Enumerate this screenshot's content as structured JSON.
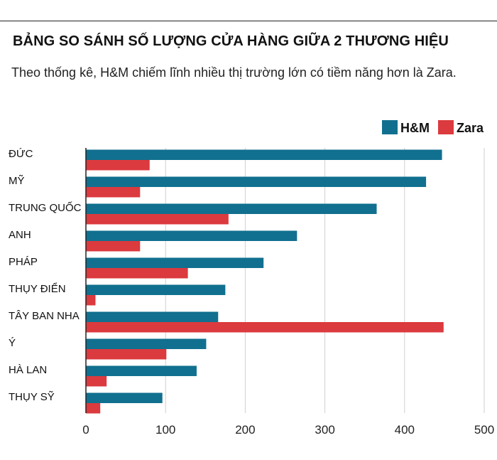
{
  "header": {
    "title": "BẢNG SO SÁNH SỐ LƯỢNG CỬA HÀNG GIỮA 2 THƯƠNG HIỆU",
    "subtitle": "Theo thống kê, H&M chiếm lĩnh nhiều thị trường lớn có tiềm năng hơn là Zara."
  },
  "chart_data": {
    "type": "bar",
    "orientation": "horizontal",
    "title": "BẢNG SO SÁNH SỐ LƯỢNG CỬA HÀNG GIỮA 2 THƯƠNG HIỆU",
    "xlabel": "",
    "ylabel": "",
    "categories": [
      "ĐỨC",
      "MỸ",
      "TRUNG QUỐC",
      "ANH",
      "PHÁP",
      "THỤY ĐIỂN",
      "TÂY BAN NHA",
      "Ý",
      "HÀ LAN",
      "THỤY SỸ"
    ],
    "series": [
      {
        "name": "H&M",
        "color": "#11708f",
        "values": [
          447,
          427,
          365,
          265,
          223,
          175,
          166,
          151,
          139,
          96
        ]
      },
      {
        "name": "Zara",
        "color": "#db3a3e",
        "values": [
          80,
          68,
          179,
          68,
          128,
          12,
          449,
          101,
          26,
          18
        ]
      }
    ],
    "xlim": [
      0,
      500
    ],
    "xticks": [
      0,
      100,
      200,
      300,
      400,
      500
    ],
    "grid": true,
    "legend_position": "top-right"
  }
}
